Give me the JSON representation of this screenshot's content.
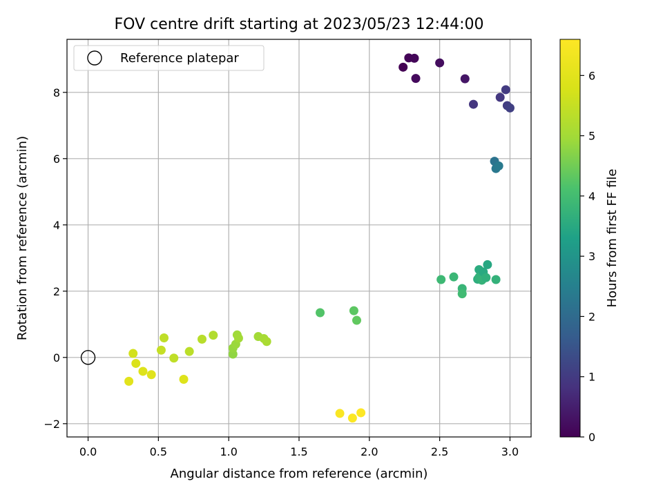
{
  "chart_data": {
    "type": "scatter",
    "title": "FOV centre drift starting at 2023/05/23 12:44:00",
    "xlabel": "Angular distance from reference (arcmin)",
    "ylabel": "Rotation from reference (arcmin)",
    "xlim": [
      -0.15,
      3.15
    ],
    "ylim": [
      -2.4,
      9.6
    ],
    "xticks": [
      0.0,
      0.5,
      1.0,
      1.5,
      2.0,
      2.5,
      3.0
    ],
    "xtick_labels": [
      "0.0",
      "0.5",
      "1.0",
      "1.5",
      "2.0",
      "2.5",
      "3.0"
    ],
    "yticks": [
      -2,
      0,
      2,
      4,
      6,
      8
    ],
    "ytick_labels": [
      "−2",
      "0",
      "2",
      "4",
      "6",
      "8"
    ],
    "grid": true,
    "legend": {
      "placement": "top-left",
      "entries": [
        "Reference platepar"
      ]
    },
    "reference_point": {
      "x": 0.0,
      "y": 0.0,
      "label": "Reference platepar"
    },
    "colorbar": {
      "label": "Hours from first FF file",
      "range": [
        0,
        6.6
      ],
      "ticks": [
        0,
        1,
        2,
        3,
        4,
        5,
        6
      ],
      "tick_labels": [
        "0",
        "1",
        "2",
        "3",
        "4",
        "5",
        "6"
      ],
      "colormap": "viridis"
    },
    "points": [
      {
        "x": 2.24,
        "y": 8.76,
        "c": 0.0
      },
      {
        "x": 2.28,
        "y": 9.04,
        "c": 0.05
      },
      {
        "x": 2.32,
        "y": 9.03,
        "c": 0.1
      },
      {
        "x": 2.33,
        "y": 8.42,
        "c": 0.15
      },
      {
        "x": 2.5,
        "y": 8.89,
        "c": 0.2
      },
      {
        "x": 2.68,
        "y": 8.41,
        "c": 0.35
      },
      {
        "x": 2.74,
        "y": 7.64,
        "c": 0.9
      },
      {
        "x": 2.93,
        "y": 7.85,
        "c": 0.95
      },
      {
        "x": 2.97,
        "y": 8.08,
        "c": 1.0
      },
      {
        "x": 2.98,
        "y": 7.6,
        "c": 1.05
      },
      {
        "x": 3.0,
        "y": 7.53,
        "c": 1.1
      },
      {
        "x": 2.89,
        "y": 5.92,
        "c": 2.2
      },
      {
        "x": 2.9,
        "y": 5.7,
        "c": 2.3
      },
      {
        "x": 2.92,
        "y": 5.78,
        "c": 2.35
      },
      {
        "x": 2.51,
        "y": 2.35,
        "c": 3.9
      },
      {
        "x": 2.6,
        "y": 2.43,
        "c": 3.85
      },
      {
        "x": 2.66,
        "y": 2.08,
        "c": 3.8
      },
      {
        "x": 2.66,
        "y": 1.92,
        "c": 3.95
      },
      {
        "x": 2.77,
        "y": 2.36,
        "c": 3.6
      },
      {
        "x": 2.78,
        "y": 2.65,
        "c": 3.55
      },
      {
        "x": 2.78,
        "y": 2.42,
        "c": 3.7
      },
      {
        "x": 2.8,
        "y": 2.33,
        "c": 3.75
      },
      {
        "x": 2.81,
        "y": 2.58,
        "c": 3.5
      },
      {
        "x": 2.84,
        "y": 2.8,
        "c": 3.45
      },
      {
        "x": 2.83,
        "y": 2.41,
        "c": 3.65
      },
      {
        "x": 2.9,
        "y": 2.35,
        "c": 3.7
      },
      {
        "x": 1.65,
        "y": 1.35,
        "c": 4.2
      },
      {
        "x": 1.89,
        "y": 1.41,
        "c": 4.3
      },
      {
        "x": 1.91,
        "y": 1.12,
        "c": 4.35
      },
      {
        "x": 1.79,
        "y": -1.69,
        "c": 6.5
      },
      {
        "x": 1.88,
        "y": -1.83,
        "c": 6.55
      },
      {
        "x": 1.94,
        "y": -1.67,
        "c": 6.6
      },
      {
        "x": 1.03,
        "y": 0.1,
        "c": 4.8
      },
      {
        "x": 1.03,
        "y": 0.28,
        "c": 4.85
      },
      {
        "x": 1.05,
        "y": 0.4,
        "c": 4.9
      },
      {
        "x": 1.06,
        "y": 0.68,
        "c": 4.95
      },
      {
        "x": 1.07,
        "y": 0.58,
        "c": 5.0
      },
      {
        "x": 1.21,
        "y": 0.63,
        "c": 5.0
      },
      {
        "x": 1.25,
        "y": 0.57,
        "c": 5.05
      },
      {
        "x": 1.27,
        "y": 0.48,
        "c": 5.1
      },
      {
        "x": 0.89,
        "y": 0.67,
        "c": 5.2
      },
      {
        "x": 0.81,
        "y": 0.55,
        "c": 5.3
      },
      {
        "x": 0.72,
        "y": 0.18,
        "c": 5.35
      },
      {
        "x": 0.61,
        "y": -0.02,
        "c": 5.4
      },
      {
        "x": 0.54,
        "y": 0.59,
        "c": 5.4
      },
      {
        "x": 0.52,
        "y": 0.22,
        "c": 5.5
      },
      {
        "x": 0.68,
        "y": -0.66,
        "c": 5.9
      },
      {
        "x": 0.32,
        "y": 0.12,
        "c": 5.7
      },
      {
        "x": 0.34,
        "y": -0.18,
        "c": 5.85
      },
      {
        "x": 0.39,
        "y": -0.42,
        "c": 5.9
      },
      {
        "x": 0.45,
        "y": -0.52,
        "c": 5.95
      },
      {
        "x": 0.29,
        "y": -0.72,
        "c": 6.0
      }
    ]
  }
}
